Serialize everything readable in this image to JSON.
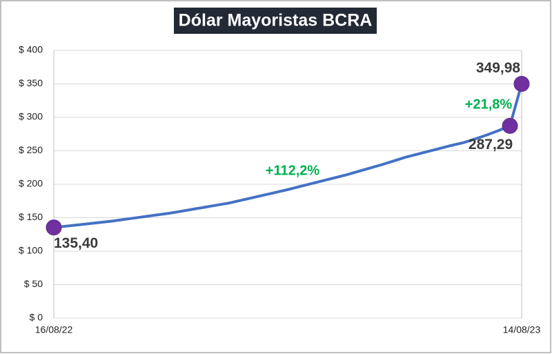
{
  "chart_data": {
    "type": "line",
    "title": "Dólar Mayoristas BCRA",
    "categories": [
      "16/08/22",
      null,
      null,
      null,
      null,
      null,
      null,
      null,
      null,
      null,
      null,
      null,
      null,
      null,
      null,
      null,
      null,
      null,
      null,
      null,
      null,
      null,
      null,
      null,
      null,
      null,
      null,
      null,
      null,
      null,
      null,
      null,
      null,
      null,
      null,
      null,
      null,
      null,
      null,
      null,
      "14/08/23"
    ],
    "series": [
      {
        "color": "#4472c4",
        "marker_color": "#7030a0",
        "values": [
          135.4,
          137.3,
          139.2,
          141.1,
          143,
          145,
          147.4,
          149.8,
          152.2,
          154.6,
          157,
          160,
          163,
          166,
          169,
          172,
          176,
          180,
          184,
          188,
          192,
          196.4,
          200.8,
          205.2,
          209.6,
          214,
          219,
          224,
          229,
          234.5,
          240,
          244.5,
          249,
          253.5,
          258,
          262,
          267.5,
          273.5,
          280,
          287.29,
          349.98
        ],
        "value_labels": [
          "135,40",
          null,
          null,
          null,
          null,
          null,
          null,
          null,
          null,
          null,
          null,
          null,
          null,
          null,
          null,
          null,
          null,
          null,
          null,
          null,
          null,
          null,
          null,
          null,
          null,
          null,
          null,
          null,
          null,
          null,
          null,
          null,
          null,
          null,
          null,
          null,
          null,
          null,
          null,
          "287,29",
          "349,98"
        ]
      }
    ],
    "annotations": [
      "+112,2%",
      "+21,8%"
    ],
    "ylim": [
      0,
      400
    ],
    "yticks": [
      {
        "value": 0,
        "label": "$ 0"
      },
      {
        "value": 50,
        "label": "$ 50"
      },
      {
        "value": 100,
        "label": "$ 100"
      },
      {
        "value": 150,
        "label": "$ 150"
      },
      {
        "value": 200,
        "label": "$ 200"
      },
      {
        "value": 250,
        "label": "$ 250"
      },
      {
        "value": 300,
        "label": "$ 300"
      },
      {
        "value": 350,
        "label": "$ 350"
      },
      {
        "value": 400,
        "label": "$ 400"
      }
    ],
    "grid": true
  }
}
